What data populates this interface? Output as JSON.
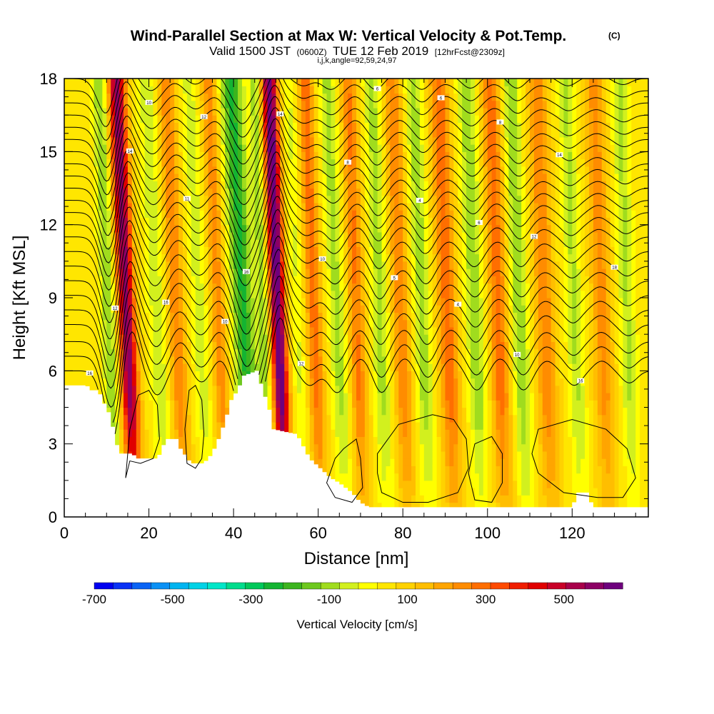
{
  "chart_data": {
    "type": "heatmap",
    "title": "Wind-Parallel Section at Max W: Vertical Velocity & Pot.Temp.",
    "title_mark": "(C)",
    "subtitle_main": "Valid 1500 JST",
    "subtitle_small1": "(0600Z)",
    "subtitle_main2": "TUE 12 Feb 2019",
    "subtitle_small2": "[12hrFcst@2309z]",
    "subtitle2": "i,j,k,angle=92,59,24,97",
    "xlabel": "Distance [nm]",
    "ylabel": "Height [Kft MSL]",
    "xlim": [
      0,
      138
    ],
    "ylim": [
      0,
      18
    ],
    "xticks": [
      0,
      20,
      40,
      60,
      80,
      100,
      120
    ],
    "yticks": [
      0,
      3,
      6,
      9,
      12,
      15,
      18
    ],
    "grid": false,
    "colorbar": {
      "label": "Vertical Velocity [cm/s]",
      "tick_labels": [
        "-700",
        "-500",
        "-300",
        "-100",
        "100",
        "300",
        "500"
      ],
      "tick_values": [
        -700,
        -500,
        -300,
        -100,
        100,
        300,
        500
      ],
      "min": -700,
      "max": 650,
      "colors": [
        "#0000f0",
        "#0a32f5",
        "#0a64f5",
        "#0a91f5",
        "#00b4f0",
        "#00d2e6",
        "#00e6c8",
        "#00dc8c",
        "#00c85a",
        "#14b432",
        "#3cb41e",
        "#6ec81e",
        "#a0dc1e",
        "#d2f01e",
        "#ffff00",
        "#ffe600",
        "#ffd200",
        "#ffbe00",
        "#ffa500",
        "#ff8c00",
        "#ff6e00",
        "#ff4b00",
        "#f01e00",
        "#e00000",
        "#c80028",
        "#a8004a",
        "#8c0064",
        "#6e007d"
      ]
    },
    "terrain_kft": [
      [
        0,
        5.4
      ],
      [
        5.4,
        5.4
      ],
      [
        6,
        5.2
      ],
      [
        8,
        5.2
      ],
      [
        9.2,
        4.8
      ],
      [
        10,
        4.4
      ],
      [
        11,
        4.2
      ],
      [
        12,
        3.2
      ],
      [
        13.2,
        2.6
      ],
      [
        16,
        2.6
      ],
      [
        17.5,
        2.4
      ],
      [
        22,
        2.4
      ],
      [
        23,
        2.7
      ],
      [
        24,
        3.2
      ],
      [
        27,
        3.2
      ],
      [
        27.5,
        2.8
      ],
      [
        30,
        2.2
      ],
      [
        33,
        2.2
      ],
      [
        35,
        2.6
      ],
      [
        37,
        3.4
      ],
      [
        38.5,
        4.2
      ],
      [
        39.5,
        4.8
      ],
      [
        41,
        5.2
      ],
      [
        42.5,
        5.8
      ],
      [
        45.5,
        6.0
      ],
      [
        47,
        5.2
      ],
      [
        48.5,
        4.4
      ],
      [
        49.5,
        3.6
      ],
      [
        52,
        3.5
      ],
      [
        55,
        3.4
      ],
      [
        58,
        2.4
      ],
      [
        63,
        1.6
      ],
      [
        65,
        1.4
      ],
      [
        68,
        1.0
      ],
      [
        70,
        0.6
      ],
      [
        72,
        0.4
      ],
      [
        120,
        0.4
      ],
      [
        121.5,
        1.0
      ],
      [
        123.5,
        1.0
      ],
      [
        125,
        0.4
      ],
      [
        138,
        0.4
      ]
    ],
    "w_bands": [
      {
        "x": 15.3,
        "w": 520,
        "width": 2.0,
        "tilt": 3.0
      },
      {
        "x": 11.0,
        "w": -180,
        "width": 1.8,
        "tilt": 2.8
      },
      {
        "x": 22.5,
        "w": -120,
        "width": 2.2,
        "tilt": 3.2
      },
      {
        "x": 27.0,
        "w": 200,
        "width": 2.0,
        "tilt": 3.0
      },
      {
        "x": 32.5,
        "w": -110,
        "width": 2.0,
        "tilt": 3.2
      },
      {
        "x": 37.0,
        "w": 180,
        "width": 1.8,
        "tilt": 3.0
      },
      {
        "x": 43.0,
        "w": -290,
        "width": 2.6,
        "tilt": 3.6
      },
      {
        "x": 47.5,
        "w": -160,
        "width": 1.4,
        "tilt": 2.6
      },
      {
        "x": 51.0,
        "w": 600,
        "width": 1.8,
        "tilt": 2.6
      },
      {
        "x": 55.5,
        "w": -90,
        "width": 1.6,
        "tilt": 2.4
      },
      {
        "x": 59.5,
        "w": 230,
        "width": 1.8,
        "tilt": 2.6
      },
      {
        "x": 65.0,
        "w": -150,
        "width": 2.0,
        "tilt": 3.0
      },
      {
        "x": 69.5,
        "w": 210,
        "width": 1.9,
        "tilt": 2.4
      },
      {
        "x": 75.0,
        "w": -150,
        "width": 2.0,
        "tilt": 2.4
      },
      {
        "x": 80.0,
        "w": 200,
        "width": 2.0,
        "tilt": 2.6
      },
      {
        "x": 85.0,
        "w": -160,
        "width": 2.0,
        "tilt": 2.6
      },
      {
        "x": 91.0,
        "w": 240,
        "width": 2.2,
        "tilt": 2.6
      },
      {
        "x": 97.5,
        "w": -170,
        "width": 2.2,
        "tilt": 2.6
      },
      {
        "x": 103.0,
        "w": 230,
        "width": 2.2,
        "tilt": 2.4
      },
      {
        "x": 108.0,
        "w": -180,
        "width": 2.0,
        "tilt": 2.6
      },
      {
        "x": 114.0,
        "w": 200,
        "width": 2.2,
        "tilt": 2.4
      },
      {
        "x": 121.0,
        "w": -140,
        "width": 2.0,
        "tilt": 2.6
      },
      {
        "x": 127.5,
        "w": 180,
        "width": 2.2,
        "tilt": 2.4
      },
      {
        "x": 133.5,
        "w": -140,
        "width": 2.0,
        "tilt": 2.4
      }
    ],
    "isentrope_base_heights_kft": [
      6.0,
      6.6,
      7.2,
      7.9,
      8.5,
      9.1,
      9.7,
      10.3,
      10.9,
      11.5,
      12.0,
      12.5,
      13.0,
      13.5,
      14.0,
      14.5,
      15.0,
      15.5,
      16.0,
      16.5,
      17.0,
      17.5,
      18.0
    ],
    "isentrope_wave": [
      {
        "x": 11.5,
        "amp": -3.0,
        "width": 3.0
      },
      {
        "x": 15.5,
        "amp": 2.0,
        "width": 2.6
      },
      {
        "x": 22.0,
        "amp": -1.0,
        "width": 2.8
      },
      {
        "x": 27.5,
        "amp": 0.6,
        "width": 2.6
      },
      {
        "x": 32.5,
        "amp": -0.5,
        "width": 2.6
      },
      {
        "x": 37.0,
        "amp": 0.5,
        "width": 2.6
      },
      {
        "x": 43.5,
        "amp": -2.6,
        "width": 3.5
      },
      {
        "x": 51.0,
        "amp": 2.2,
        "width": 2.4
      },
      {
        "x": 58.0,
        "amp": -0.6,
        "width": 2.6
      },
      {
        "x": 64.5,
        "amp": -0.9,
        "width": 2.8
      },
      {
        "x": 70.0,
        "amp": 0.5,
        "width": 2.4
      },
      {
        "x": 75.0,
        "amp": -0.9,
        "width": 2.4
      },
      {
        "x": 80.5,
        "amp": 0.5,
        "width": 2.4
      },
      {
        "x": 86.0,
        "amp": -0.9,
        "width": 2.6
      },
      {
        "x": 91.5,
        "amp": 0.5,
        "width": 2.6
      },
      {
        "x": 97.5,
        "amp": -0.8,
        "width": 2.6
      },
      {
        "x": 103.0,
        "amp": 0.5,
        "width": 2.6
      },
      {
        "x": 108.5,
        "amp": -0.8,
        "width": 2.6
      },
      {
        "x": 114.0,
        "amp": 0.4,
        "width": 2.6
      },
      {
        "x": 120.5,
        "amp": -0.6,
        "width": 2.6
      },
      {
        "x": 127.0,
        "amp": 0.4,
        "width": 2.6
      },
      {
        "x": 133.5,
        "amp": -0.5,
        "width": 2.6
      }
    ],
    "low_level_contours": [
      {
        "name": "closed-contour-1",
        "points": [
          [
            14.5,
            1.6
          ],
          [
            15.5,
            3.6
          ],
          [
            17.5,
            5.0
          ],
          [
            20,
            5.2
          ],
          [
            22,
            4.6
          ],
          [
            22.5,
            3.2
          ],
          [
            21,
            2.4
          ],
          [
            18,
            2.2
          ],
          [
            15.5,
            2.3
          ]
        ]
      },
      {
        "name": "closed-contour-2",
        "points": [
          [
            29,
            2.2
          ],
          [
            28.5,
            3.6
          ],
          [
            29.5,
            5.2
          ],
          [
            31,
            5.4
          ],
          [
            32.5,
            4.8
          ],
          [
            33,
            3.4
          ],
          [
            32.5,
            2.4
          ],
          [
            31,
            2.0
          ]
        ]
      },
      {
        "name": "closed-contour-3",
        "points": [
          [
            64,
            2.4
          ],
          [
            66,
            2.8
          ],
          [
            69,
            3.2
          ],
          [
            70,
            2.4
          ],
          [
            70.5,
            1.2
          ],
          [
            68,
            0.6
          ],
          [
            64,
            0.8
          ],
          [
            62,
            1.4
          ]
        ]
      },
      {
        "name": "closed-contour-4",
        "points": [
          [
            74,
            2.6
          ],
          [
            79,
            3.8
          ],
          [
            87,
            4.2
          ],
          [
            92,
            4.0
          ],
          [
            95,
            3.2
          ],
          [
            95.5,
            2.0
          ],
          [
            93,
            1.0
          ],
          [
            86,
            0.6
          ],
          [
            80,
            0.6
          ],
          [
            75,
            1.0
          ],
          [
            74,
            1.8
          ]
        ]
      },
      {
        "name": "closed-contour-5",
        "points": [
          [
            97,
            3.0
          ],
          [
            101,
            3.3
          ],
          [
            103.5,
            2.6
          ],
          [
            103.5,
            1.4
          ],
          [
            101,
            0.6
          ],
          [
            97,
            0.7
          ],
          [
            95.5,
            1.8
          ]
        ]
      },
      {
        "name": "closed-contour-6",
        "points": [
          [
            112,
            3.6
          ],
          [
            120,
            4.0
          ],
          [
            128,
            3.6
          ],
          [
            133,
            2.8
          ],
          [
            135,
            1.6
          ],
          [
            132,
            0.8
          ],
          [
            126,
            0.8
          ],
          [
            118,
            1.0
          ],
          [
            112,
            1.8
          ],
          [
            110.5,
            2.6
          ]
        ]
      }
    ],
    "contour_labels": [
      "16",
      "12",
      "14",
      "10",
      "16",
      "11",
      "12",
      "10",
      "16",
      "14",
      "12",
      "10",
      "8",
      "6",
      "5",
      "4",
      "6",
      "4",
      "6",
      "8",
      "10",
      "12",
      "14",
      "16",
      "18"
    ]
  }
}
